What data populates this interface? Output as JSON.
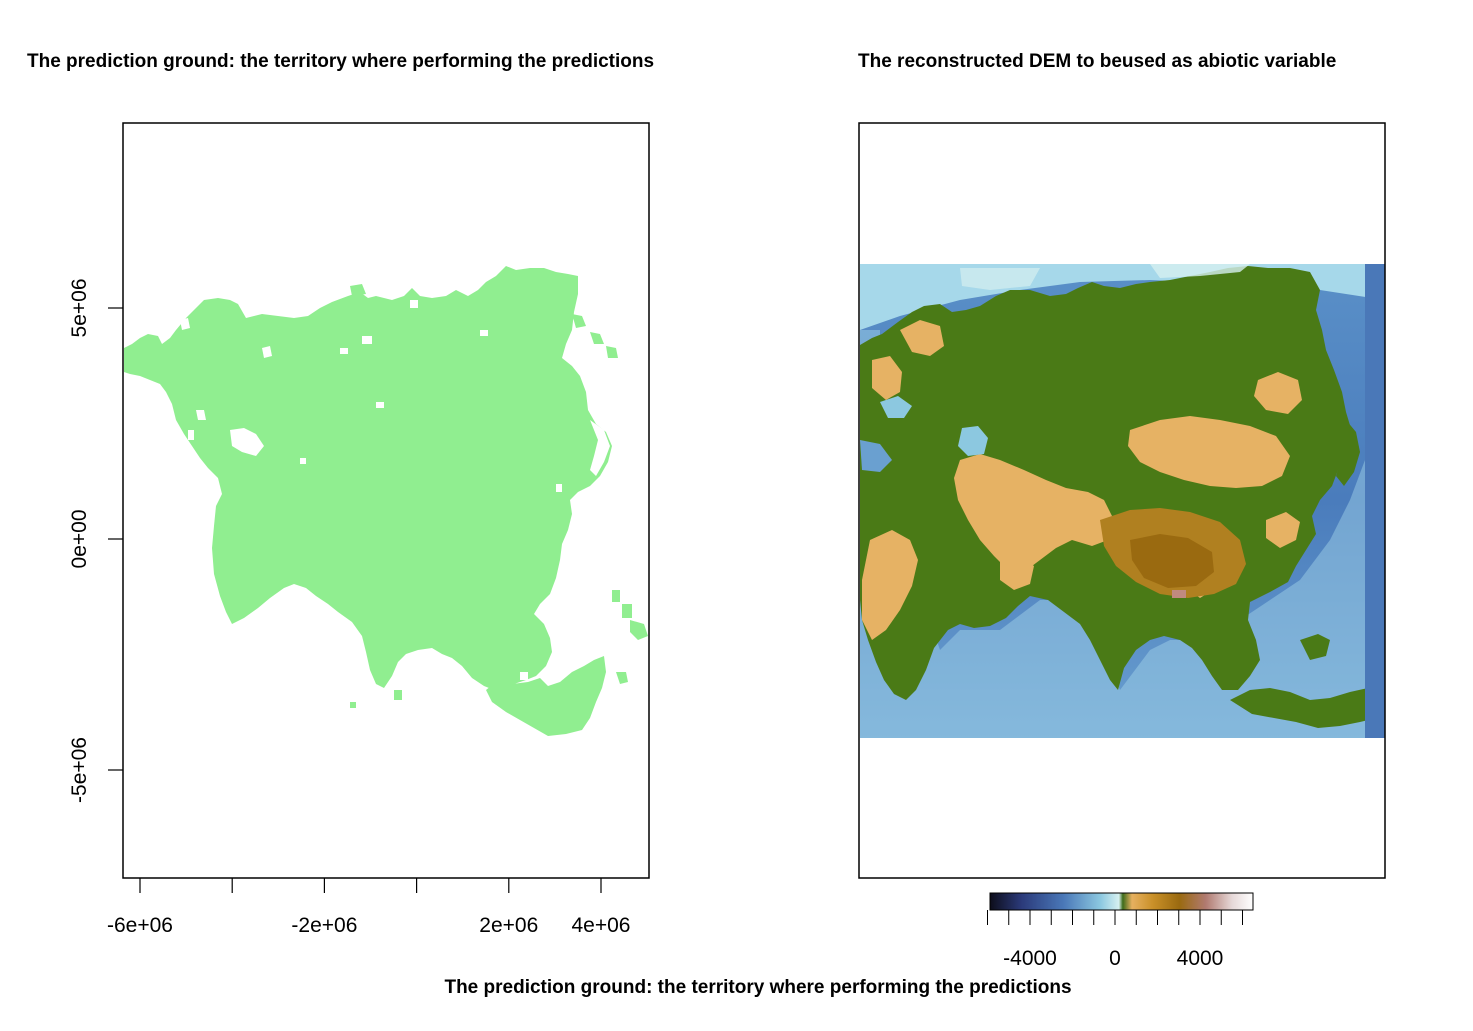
{
  "left_panel": {
    "title": "The prediction ground: the territory where performing the predictions",
    "x_ticks": [
      {
        "value": -6000000,
        "label": "-6e+06"
      },
      {
        "value": -4000000,
        "label": ""
      },
      {
        "value": -2000000,
        "label": "-2e+06"
      },
      {
        "value": 0,
        "label": ""
      },
      {
        "value": 2000000,
        "label": "2e+06"
      },
      {
        "value": 4000000,
        "label": "4e+06"
      }
    ],
    "y_ticks": [
      {
        "value": 5000000,
        "label": "5e+06"
      },
      {
        "value": 0,
        "label": "0e+00"
      },
      {
        "value": -5000000,
        "label": "-5e+06"
      }
    ],
    "fill_color": "#90ee90"
  },
  "right_panel": {
    "title": "The reconstructed DEM to beused as abiotic variable",
    "legend": {
      "ticks": [
        {
          "value": -4000,
          "label": "-4000"
        },
        {
          "value": 0,
          "label": "0"
        },
        {
          "value": 4000,
          "label": "4000"
        }
      ],
      "minor_ticks": [
        -6000,
        -5000,
        -3000,
        -2000,
        -1000,
        1000,
        2000,
        3000,
        5000,
        6000
      ]
    }
  },
  "caption": "The prediction ground: the territory where performing the predictions"
}
